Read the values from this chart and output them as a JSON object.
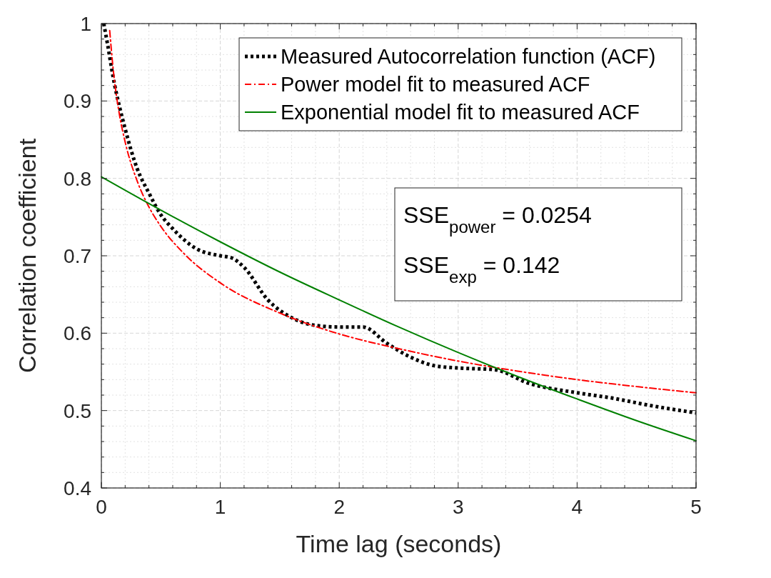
{
  "chart_data": {
    "type": "line",
    "xlabel": "Time lag (seconds)",
    "ylabel": "Correlation coefficient",
    "xlim": [
      0,
      5
    ],
    "ylim": [
      0.4,
      1
    ],
    "xticks": [
      0,
      {
        "value": 0.2,
        "label": null
      },
      {
        "value": 0.4,
        "label": null
      },
      {
        "value": 0.6,
        "label": null
      },
      {
        "value": 0.8,
        "label": null
      },
      1,
      {
        "value": 1.2,
        "label": null
      },
      {
        "value": 1.4,
        "label": null
      },
      {
        "value": 1.6,
        "label": null
      },
      {
        "value": 1.8,
        "label": null
      },
      2,
      {
        "value": 2.2,
        "label": null
      },
      {
        "value": 2.4,
        "label": null
      },
      {
        "value": 2.6,
        "label": null
      },
      {
        "value": 2.8,
        "label": null
      },
      3,
      {
        "value": 3.2,
        "label": null
      },
      {
        "value": 3.4,
        "label": null
      },
      {
        "value": 3.6,
        "label": null
      },
      {
        "value": 3.8,
        "label": null
      },
      4,
      {
        "value": 4.2,
        "label": null
      },
      {
        "value": 4.4,
        "label": null
      },
      {
        "value": 4.6,
        "label": null
      },
      {
        "value": 4.8,
        "label": null
      },
      5
    ],
    "yticks": [
      0.4,
      {
        "value": 0.42,
        "label": null
      },
      {
        "value": 0.44,
        "label": null
      },
      {
        "value": 0.46,
        "label": null
      },
      {
        "value": 0.48,
        "label": null
      },
      0.5,
      {
        "value": 0.52,
        "label": null
      },
      {
        "value": 0.54,
        "label": null
      },
      {
        "value": 0.56,
        "label": null
      },
      {
        "value": 0.58,
        "label": null
      },
      0.6,
      {
        "value": 0.62,
        "label": null
      },
      {
        "value": 0.64,
        "label": null
      },
      {
        "value": 0.66,
        "label": null
      },
      {
        "value": 0.68,
        "label": null
      },
      0.7,
      {
        "value": 0.72,
        "label": null
      },
      {
        "value": 0.74,
        "label": null
      },
      {
        "value": 0.76,
        "label": null
      },
      {
        "value": 0.78,
        "label": null
      },
      0.8,
      {
        "value": 0.82,
        "label": null
      },
      {
        "value": 0.84,
        "label": null
      },
      {
        "value": 0.86,
        "label": null
      },
      {
        "value": 0.88,
        "label": null
      },
      0.9,
      {
        "value": 0.92,
        "label": null
      },
      {
        "value": 0.94,
        "label": null
      },
      {
        "value": 0.96,
        "label": null
      },
      {
        "value": 0.98,
        "label": null
      },
      1
    ],
    "grid": true,
    "legend": "top right",
    "series": [
      {
        "name": "Measured Autocorrelation function (ACF)",
        "color": "#000000",
        "line_style": "dotted",
        "x": [
          0.02,
          0.05,
          0.1,
          0.2,
          0.3,
          0.4,
          0.5,
          0.6,
          0.8,
          1.0,
          1.1,
          1.2,
          1.4,
          1.6,
          1.8,
          2.0,
          2.2,
          2.4,
          2.6,
          2.8,
          3.0,
          3.3,
          3.6,
          4.0,
          4.3,
          4.6,
          5.0
        ],
        "values": [
          1.0,
          0.975,
          0.93,
          0.864,
          0.813,
          0.781,
          0.753,
          0.735,
          0.709,
          0.7,
          0.697,
          0.685,
          0.643,
          0.62,
          0.61,
          0.608,
          0.608,
          0.587,
          0.569,
          0.558,
          0.555,
          0.553,
          0.535,
          0.523,
          0.516,
          0.507,
          0.497
        ]
      },
      {
        "name": "Power model fit to measured ACF",
        "color": "#ff0000",
        "line_style": "dashed",
        "x": [
          0.07,
          0.1,
          0.15,
          0.2,
          0.3,
          0.4,
          0.5,
          0.7,
          1.0,
          1.5,
          2,
          2.5,
          3,
          3.5,
          4,
          4.5,
          5
        ],
        "values": [
          0.991,
          0.94,
          0.884,
          0.847,
          0.797,
          0.763,
          0.738,
          0.702,
          0.665,
          0.626,
          0.599,
          0.58,
          0.564,
          0.551,
          0.54,
          0.531,
          0.523
        ]
      },
      {
        "name": "Exponential model fit to measured ACF",
        "color": "#008000",
        "line_style": "solid",
        "x": [
          0,
          0.5,
          1,
          1.5,
          2,
          2.5,
          3,
          3.5,
          4,
          4.5,
          5
        ],
        "values": [
          0.802,
          0.759,
          0.718,
          0.679,
          0.643,
          0.608,
          0.575,
          0.544,
          0.515,
          0.487,
          0.461
        ]
      }
    ],
    "annotations": [
      "SSE$_{power}$ = 0.0254",
      "SSE$_{exp}$ = 0.142"
    ]
  }
}
